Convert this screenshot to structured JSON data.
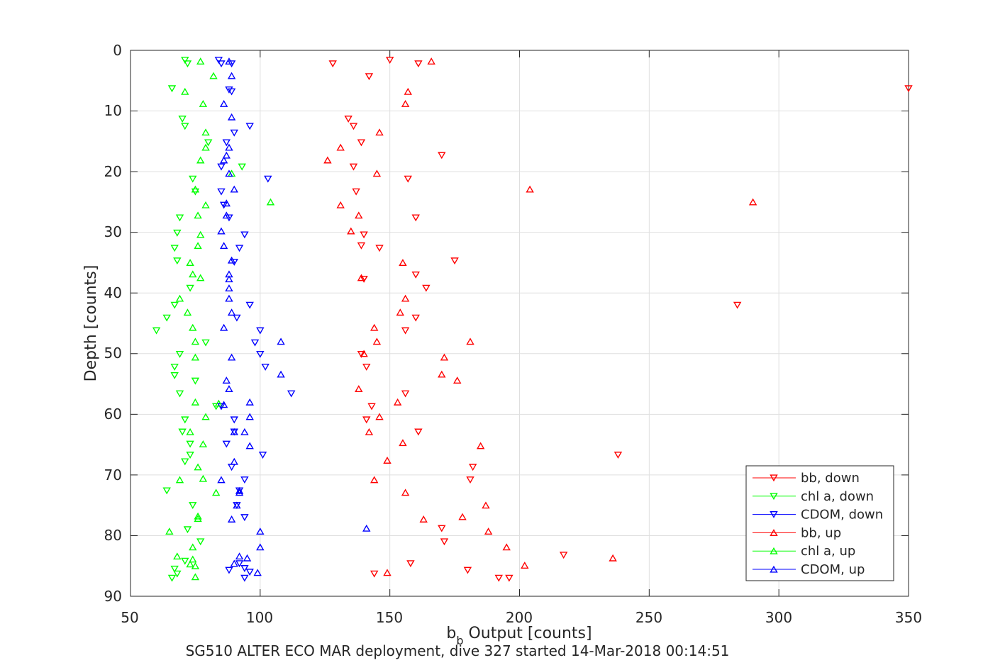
{
  "chart_data": {
    "type": "scatter",
    "xlabel_main": "b",
    "xlabel_sub": "b",
    "xlabel_rest": " Output [counts]",
    "ylabel": "Depth [counts]",
    "caption": "SG510 ALTER ECO MAR deployment, dive 327 started 14-Mar-2018 00:14:51",
    "xlim": [
      50,
      350
    ],
    "ylim": [
      0,
      90
    ],
    "y_reversed": true,
    "grid": true,
    "legend_position": "bottom-right",
    "xticks": [
      "50",
      "100",
      "150",
      "200",
      "250",
      "300",
      "350"
    ],
    "yticks": [
      "0",
      "10",
      "20",
      "30",
      "40",
      "50",
      "60",
      "70",
      "80",
      "90"
    ],
    "series": [
      {
        "name": "bb, down",
        "marker": "triangle-down",
        "color": "#ff0000",
        "points": [
          [
            150,
            1.6
          ],
          [
            161,
            2.2
          ],
          [
            128,
            2.2
          ],
          [
            142,
            4.3
          ],
          [
            350,
            6.3
          ],
          [
            170,
            17.3
          ],
          [
            134,
            11.3
          ],
          [
            136,
            12.5
          ],
          [
            139,
            15.2
          ],
          [
            136,
            19.2
          ],
          [
            157,
            21.2
          ],
          [
            137,
            23.3
          ],
          [
            160,
            27.6
          ],
          [
            140,
            30.4
          ],
          [
            139,
            32.2
          ],
          [
            146,
            32.6
          ],
          [
            175,
            34.7
          ],
          [
            160,
            37
          ],
          [
            164,
            39.2
          ],
          [
            140,
            37.7
          ],
          [
            284,
            42
          ],
          [
            160,
            44.1
          ],
          [
            156,
            46.2
          ],
          [
            139,
            50.1
          ],
          [
            141,
            52.2
          ],
          [
            156,
            56.6
          ],
          [
            143,
            58.7
          ],
          [
            141,
            60.9
          ],
          [
            161,
            62.9
          ],
          [
            238,
            66.7
          ],
          [
            182,
            68.7
          ],
          [
            181,
            70.8
          ],
          [
            170,
            78.8
          ],
          [
            171,
            81
          ],
          [
            217,
            83.2
          ],
          [
            158,
            84.6
          ],
          [
            180,
            85.7
          ],
          [
            144,
            86.3
          ],
          [
            192,
            87
          ],
          [
            196,
            87
          ]
        ]
      },
      {
        "name": "chl a, down",
        "marker": "triangle-down",
        "color": "#00ff00",
        "points": [
          [
            71,
            1.6
          ],
          [
            72,
            2.2
          ],
          [
            66,
            6.3
          ],
          [
            70,
            11.3
          ],
          [
            71,
            12.5
          ],
          [
            80,
            15.2
          ],
          [
            93,
            19.2
          ],
          [
            74,
            21.2
          ],
          [
            75,
            23.3
          ],
          [
            69,
            27.6
          ],
          [
            68,
            30.1
          ],
          [
            67,
            32.6
          ],
          [
            68,
            34.7
          ],
          [
            73,
            39.2
          ],
          [
            67,
            42
          ],
          [
            64,
            44.1
          ],
          [
            60,
            46.2
          ],
          [
            79,
            48.2
          ],
          [
            69,
            50.1
          ],
          [
            67,
            52.2
          ],
          [
            67,
            53.6
          ],
          [
            75,
            54.5
          ],
          [
            69,
            56.6
          ],
          [
            83,
            58.7
          ],
          [
            71,
            60.9
          ],
          [
            70,
            62.9
          ],
          [
            73,
            64.9
          ],
          [
            73,
            66.7
          ],
          [
            71,
            67.8
          ],
          [
            64,
            72.6
          ],
          [
            74,
            75
          ],
          [
            72,
            79
          ],
          [
            77,
            81
          ],
          [
            71,
            84.2
          ],
          [
            67,
            85.5
          ],
          [
            68,
            86.3
          ],
          [
            66,
            87
          ]
        ]
      },
      {
        "name": "CDOM, down",
        "marker": "triangle-down",
        "color": "#0000ff",
        "points": [
          [
            84,
            1.6
          ],
          [
            85,
            2.2
          ],
          [
            89,
            2.2
          ],
          [
            88,
            6.5
          ],
          [
            89,
            6.8
          ],
          [
            96,
            12.5
          ],
          [
            90,
            13.6
          ],
          [
            87,
            15.2
          ],
          [
            85,
            19.2
          ],
          [
            103,
            21.2
          ],
          [
            85,
            23.3
          ],
          [
            86,
            25.5
          ],
          [
            88,
            27.6
          ],
          [
            94,
            30.4
          ],
          [
            92,
            32.6
          ],
          [
            90,
            34.9
          ],
          [
            96,
            42
          ],
          [
            91,
            44.1
          ],
          [
            100,
            46.2
          ],
          [
            98,
            48.2
          ],
          [
            100,
            50.1
          ],
          [
            102,
            52.2
          ],
          [
            112,
            56.6
          ],
          [
            85,
            58.7
          ],
          [
            90,
            60.9
          ],
          [
            90,
            62.9
          ],
          [
            87,
            64.9
          ],
          [
            101,
            66.7
          ],
          [
            89,
            68.7
          ],
          [
            94,
            70.8
          ],
          [
            92,
            72.6
          ],
          [
            91,
            75
          ],
          [
            94,
            77
          ],
          [
            92,
            84.6
          ],
          [
            96,
            86
          ],
          [
            88,
            85.7
          ],
          [
            94,
            85.4
          ],
          [
            94,
            87
          ]
        ]
      },
      {
        "name": "bb, up",
        "marker": "triangle-up",
        "color": "#ff0000",
        "points": [
          [
            166,
            1.8
          ],
          [
            157,
            6.8
          ],
          [
            156,
            8.8
          ],
          [
            146,
            13.5
          ],
          [
            131,
            16
          ],
          [
            126,
            18.1
          ],
          [
            145,
            20.3
          ],
          [
            204,
            22.9
          ],
          [
            131,
            25.5
          ],
          [
            290,
            25
          ],
          [
            138,
            27.2
          ],
          [
            135,
            29.8
          ],
          [
            155,
            35
          ],
          [
            139,
            37.5
          ],
          [
            156,
            40.9
          ],
          [
            154,
            43.2
          ],
          [
            144,
            45.7
          ],
          [
            145,
            48
          ],
          [
            181,
            48
          ],
          [
            171,
            50.6
          ],
          [
            140,
            50
          ],
          [
            170,
            53.4
          ],
          [
            176,
            54.4
          ],
          [
            138,
            55.8
          ],
          [
            153,
            58
          ],
          [
            146,
            60.4
          ],
          [
            142,
            62.9
          ],
          [
            155,
            64.7
          ],
          [
            185,
            65.2
          ],
          [
            149,
            67.6
          ],
          [
            144,
            70.8
          ],
          [
            156,
            72.9
          ],
          [
            187,
            75
          ],
          [
            178,
            76.9
          ],
          [
            163,
            77.3
          ],
          [
            188,
            79.3
          ],
          [
            195,
            81.9
          ],
          [
            202,
            84.9
          ],
          [
            236,
            83.7
          ],
          [
            149,
            86.1
          ]
        ]
      },
      {
        "name": "chl a, up",
        "marker": "triangle-up",
        "color": "#00ff00",
        "points": [
          [
            77,
            1.8
          ],
          [
            82,
            4.2
          ],
          [
            71,
            6.8
          ],
          [
            78,
            8.8
          ],
          [
            79,
            13.5
          ],
          [
            79,
            16
          ],
          [
            77,
            18.1
          ],
          [
            89,
            20.3
          ],
          [
            75,
            22.9
          ],
          [
            79,
            25.5
          ],
          [
            104,
            25
          ],
          [
            76,
            27.2
          ],
          [
            77,
            30.4
          ],
          [
            76,
            32.2
          ],
          [
            73,
            35
          ],
          [
            77,
            37.5
          ],
          [
            74,
            36.9
          ],
          [
            69,
            40.9
          ],
          [
            72,
            43.2
          ],
          [
            74,
            45.7
          ],
          [
            75,
            48
          ],
          [
            75,
            50.6
          ],
          [
            84,
            58.2
          ],
          [
            75,
            58
          ],
          [
            79,
            60.4
          ],
          [
            73,
            62.9
          ],
          [
            78,
            64.9
          ],
          [
            76,
            68.7
          ],
          [
            69,
            70.8
          ],
          [
            78,
            70.6
          ],
          [
            83,
            72.9
          ],
          [
            76,
            76.8
          ],
          [
            76,
            77.2
          ],
          [
            65,
            79.3
          ],
          [
            74,
            81.9
          ],
          [
            68,
            83.4
          ],
          [
            74,
            83.9
          ],
          [
            73,
            84.7
          ],
          [
            75,
            85
          ],
          [
            75,
            86.8
          ]
        ]
      },
      {
        "name": "CDOM, up",
        "marker": "triangle-up",
        "color": "#0000ff",
        "points": [
          [
            88,
            1.8
          ],
          [
            89,
            4.2
          ],
          [
            86,
            8.8
          ],
          [
            89,
            11
          ],
          [
            88,
            16
          ],
          [
            87,
            17.3
          ],
          [
            86,
            18.1
          ],
          [
            88,
            20.3
          ],
          [
            90,
            22.9
          ],
          [
            87,
            25.2
          ],
          [
            87,
            27.2
          ],
          [
            85,
            29.8
          ],
          [
            86,
            32.2
          ],
          [
            89,
            34.6
          ],
          [
            88,
            36.9
          ],
          [
            88,
            37.7
          ],
          [
            88,
            39.2
          ],
          [
            88,
            40.9
          ],
          [
            89,
            43.2
          ],
          [
            86,
            45.7
          ],
          [
            108,
            48
          ],
          [
            89,
            50.6
          ],
          [
            108,
            53.4
          ],
          [
            87,
            54.4
          ],
          [
            88,
            55.8
          ],
          [
            86,
            58.4
          ],
          [
            96,
            58
          ],
          [
            96,
            60.4
          ],
          [
            94,
            62.9
          ],
          [
            90,
            62.9
          ],
          [
            96,
            65.2
          ],
          [
            90,
            67.8
          ],
          [
            85,
            70.8
          ],
          [
            92,
            72.6
          ],
          [
            92,
            72.9
          ],
          [
            91,
            75
          ],
          [
            89,
            77.3
          ],
          [
            141,
            78.8
          ],
          [
            100,
            79.3
          ],
          [
            100,
            81.9
          ],
          [
            92,
            83.4
          ],
          [
            95,
            83.7
          ],
          [
            90,
            84.6
          ],
          [
            99,
            86.1
          ]
        ]
      }
    ]
  }
}
